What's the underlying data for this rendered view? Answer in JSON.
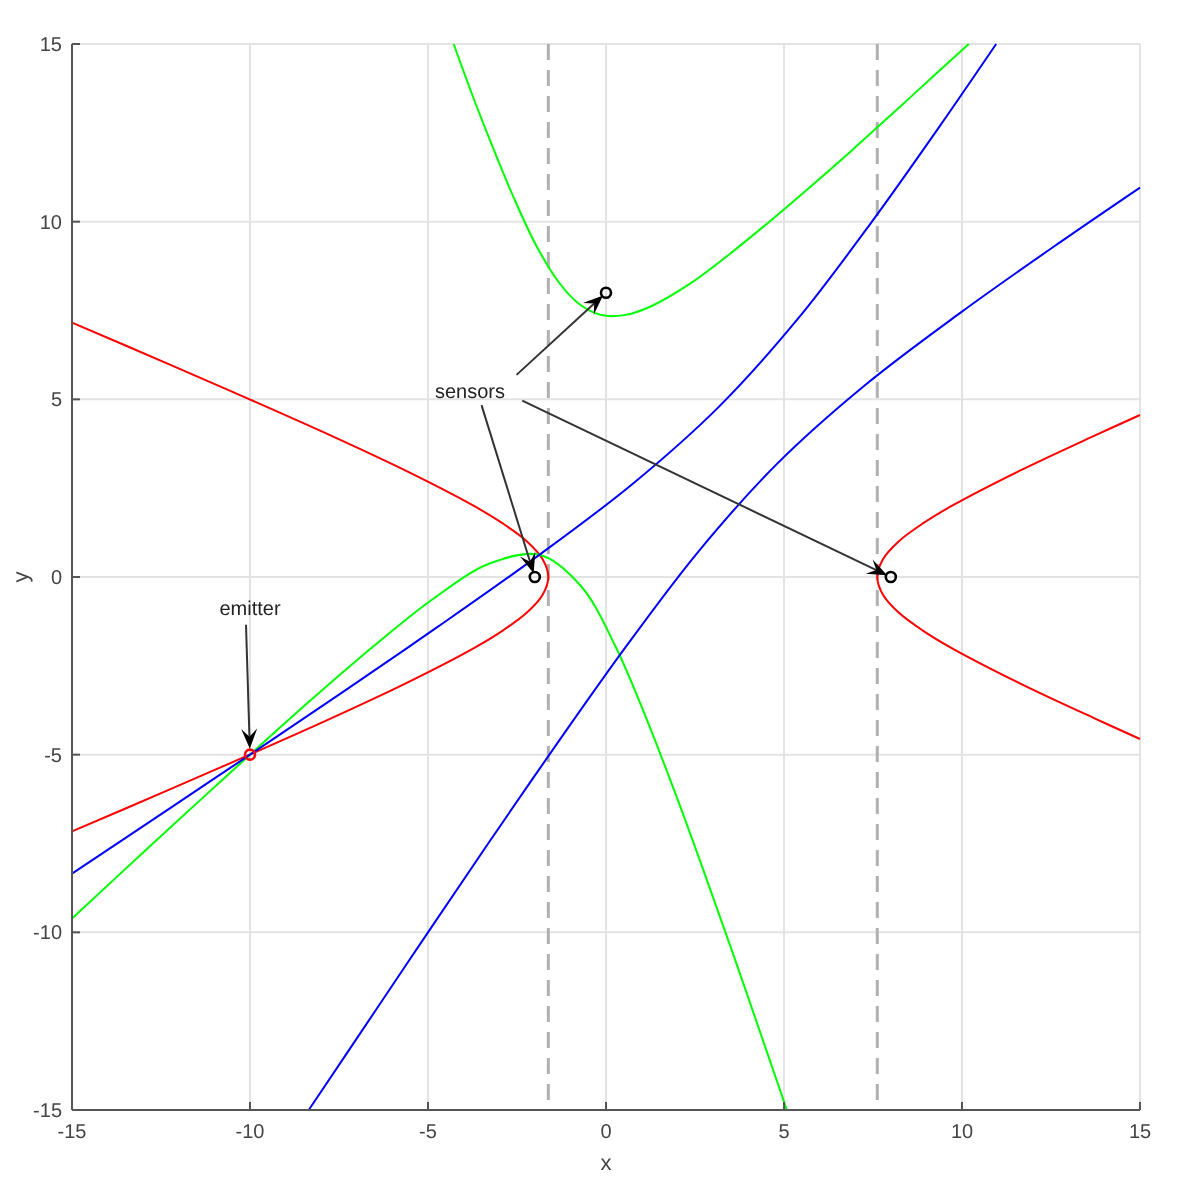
{
  "chart_data": {
    "type": "line",
    "xlabel": "x",
    "ylabel": "y",
    "xlim": [
      -15,
      15
    ],
    "ylim": [
      -15,
      15
    ],
    "xticks": [
      -15,
      -10,
      -5,
      0,
      5,
      10,
      15
    ],
    "yticks": [
      -15,
      -10,
      -5,
      0,
      5,
      10,
      15
    ],
    "grid": true,
    "series": [
      {
        "color": "#ff0000",
        "x": [
          -15,
          -12.3,
          -10.01,
          -7.77,
          -5.64,
          -3.71,
          -2.89,
          -2.22,
          -1.78,
          -1.62,
          -1.78,
          -2.22,
          -2.89,
          -3.71,
          -5.64,
          -7.77,
          -10.01,
          -12.3,
          -15
        ],
        "values": [
          -7.16,
          -6,
          -5,
          -4,
          -3,
          -2,
          -1.5,
          -1,
          -0.5,
          0,
          0.5,
          1,
          1.5,
          2,
          3,
          4,
          5,
          6,
          7.16
        ]
      },
      {
        "color": "#ff0000",
        "x": [
          15,
          13.77,
          11.64,
          9.71,
          8.89,
          8.22,
          7.78,
          7.62,
          7.78,
          8.22,
          8.89,
          9.71,
          11.64,
          13.77,
          15
        ],
        "values": [
          -4.56,
          -4,
          -3,
          -2,
          -1.5,
          -1,
          -0.5,
          0,
          0.5,
          1,
          1.5,
          2,
          3,
          4,
          4.56
        ]
      },
      {
        "color": "#00ff00",
        "x": [
          -4.28,
          -3.67,
          -3.11,
          -2.54,
          -1.95,
          -1.3,
          -0.76,
          -0.16,
          0.52,
          1.27,
          2.34,
          3.45,
          4.59,
          5.75,
          6.92,
          8.09,
          9.27,
          10.19
        ],
        "values": [
          15,
          13.34,
          11.92,
          10.56,
          9.31,
          8.26,
          7.69,
          7.38,
          7.37,
          7.62,
          8.24,
          9.07,
          10,
          10.99,
          12.02,
          13.08,
          14.16,
          15
        ]
      },
      {
        "color": "#00ff00",
        "x": [
          -15,
          -13.04,
          -11.27,
          -10,
          -8.33,
          -6.59,
          -4.89,
          -3.27,
          -1.85,
          -0.7,
          0.25,
          1.11,
          1.94,
          2.75,
          3.55,
          4.34,
          5.08
        ],
        "values": [
          -9.61,
          -7.79,
          -6.16,
          -5,
          -3.5,
          -2,
          -0.64,
          0.38,
          0.62,
          -0.26,
          -1.92,
          -3.92,
          -6.07,
          -8.29,
          -10.55,
          -12.84,
          -15
        ]
      },
      {
        "color": "#0000ff",
        "x": [
          -15,
          -12.18,
          -10,
          -7.5,
          -4.71,
          -1.96,
          0.71,
          3.19,
          5.41,
          7.44,
          9.39,
          10.96
        ],
        "values": [
          -8.35,
          -6.46,
          -5,
          -3.31,
          -1.39,
          0.56,
          2.59,
          4.81,
          7.29,
          9.96,
          12.71,
          15
        ]
      },
      {
        "color": "#0000ff",
        "x": [
          -8.35,
          -6.46,
          -5,
          -3.31,
          -1.39,
          0.56,
          2.59,
          4.81,
          7.29,
          9.96,
          12.71,
          15
        ],
        "values": [
          -15,
          -12.18,
          -10,
          -7.5,
          -4.71,
          -1.96,
          0.71,
          3.19,
          5.41,
          7.44,
          9.39,
          10.96
        ]
      },
      {
        "type": "scatter",
        "marker": "circle",
        "color": "#ff0000",
        "x": [
          -10
        ],
        "values": [
          -5
        ]
      },
      {
        "type": "scatter",
        "marker": "circle",
        "color": "#000000",
        "x": [
          -2,
          8,
          0
        ],
        "values": [
          0,
          0,
          8
        ]
      }
    ],
    "ref_lines": [
      {
        "axis": "x",
        "value": -1.62,
        "color": "#b0b0b0",
        "line_style": "dashed"
      },
      {
        "axis": "x",
        "value": 7.62,
        "color": "#b0b0b0",
        "line_style": "dashed"
      }
    ],
    "annotations": [
      {
        "text": "emitter",
        "x": -10,
        "y": -5
      },
      {
        "text": "sensors",
        "x": -2,
        "y": 0
      }
    ]
  }
}
